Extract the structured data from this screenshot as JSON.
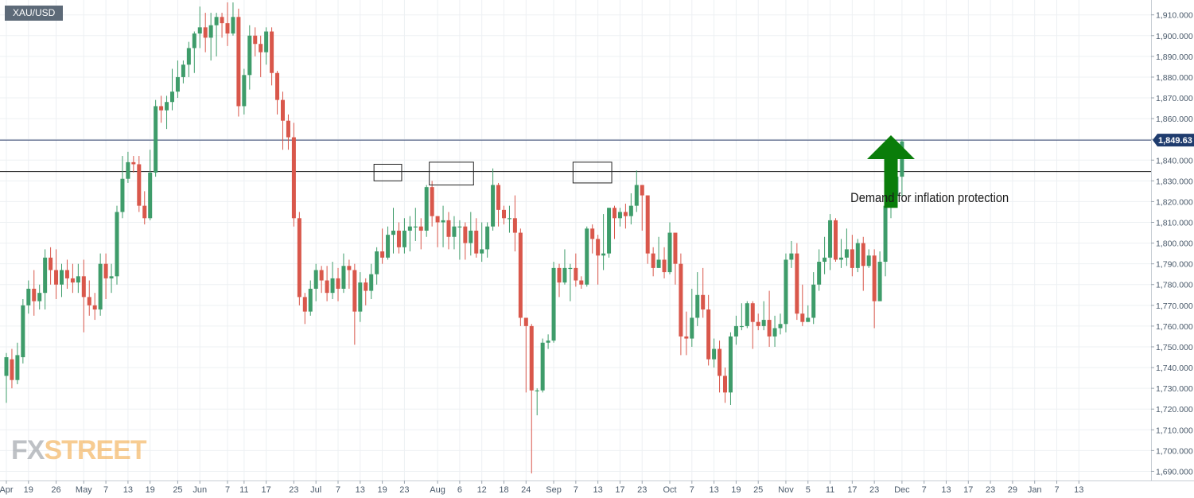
{
  "header": {
    "symbol": "XAU/USD"
  },
  "watermark": {
    "part1": "FX",
    "part2": "STREET"
  },
  "annotation": {
    "text": "Demand for  inflation protection"
  },
  "colors": {
    "up": "#3e9c6a",
    "down": "#d9574b",
    "arrow": "#0a7d0a",
    "grid": "#edf0f3",
    "price_line": "#2c3e6b",
    "price_tag_bg": "#1f3c6e",
    "axis_text": "#4a5a6b"
  },
  "chart_data": {
    "type": "candlestick",
    "title": "",
    "series_name": "XAU/USD",
    "current_price_label": "1,849.63",
    "ylim": [
      1686,
      1916
    ],
    "y_ticks": [
      1690,
      1700,
      1710,
      1720,
      1730,
      1740,
      1750,
      1760,
      1770,
      1780,
      1790,
      1800,
      1810,
      1820,
      1830,
      1840,
      1850,
      1860,
      1870,
      1880,
      1890,
      1900,
      1910
    ],
    "y_tick_labels": [
      "1,690.000",
      "1,700.000",
      "1,710.000",
      "1,720.000",
      "1,730.000",
      "1,740.000",
      "1,750.000",
      "1,760.000",
      "1,770.000",
      "1,780.000",
      "1,790.000",
      "1,800.000",
      "1,810.000",
      "1,820.000",
      "1,830.000",
      "1,840.000",
      "1,850.000",
      "1,860.000",
      "1,870.000",
      "1,880.000",
      "1,890.000",
      "1,900.000",
      "1,910.000"
    ],
    "x_tick_labels": [
      "Apr",
      "19",
      "26",
      "May",
      "7",
      "13",
      "19",
      "25",
      "Jun",
      "7",
      "11",
      "17",
      "23",
      "Jul",
      "7",
      "13",
      "19",
      "23",
      "Aug",
      "6",
      "12",
      "18",
      "24",
      "Sep",
      "7",
      "13",
      "17",
      "23",
      "Oct",
      "7",
      "13",
      "19",
      "25",
      "Nov",
      "5",
      "11",
      "17",
      "23",
      "Dec",
      "7",
      "13",
      "17",
      "23",
      "29",
      "Jan",
      "7",
      "13"
    ],
    "x_tick_index": [
      0,
      4,
      9,
      14,
      18,
      22,
      26,
      31,
      35,
      40,
      43,
      47,
      52,
      56,
      60,
      64,
      68,
      72,
      78,
      82,
      86,
      90,
      94,
      99,
      103,
      107,
      111,
      115,
      120,
      124,
      128,
      132,
      136,
      141,
      145,
      149,
      153,
      157,
      162,
      166,
      170,
      174,
      178,
      182,
      186,
      190,
      194
    ],
    "horizontal_lines": [
      1849.63,
      1834.5
    ],
    "boxes": [
      {
        "from": 67,
        "to": 71,
        "low": 1830,
        "high": 1838
      },
      {
        "from": 77,
        "to": 84,
        "low": 1828,
        "high": 1839
      },
      {
        "from": 103,
        "to": 109,
        "low": 1829,
        "high": 1839
      }
    ],
    "arrow": {
      "index": 160,
      "price_from": 1817,
      "price_to": 1852
    },
    "annotation_anchor": {
      "index": 167,
      "price": 1821.5
    },
    "candles": [
      [
        1736,
        1745,
        1747,
        1723
      ],
      [
        1744,
        1734,
        1749,
        1730
      ],
      [
        1734,
        1746,
        1752,
        1732
      ],
      [
        1745,
        1770,
        1773,
        1742
      ],
      [
        1770,
        1778,
        1782,
        1766
      ],
      [
        1778,
        1772,
        1787,
        1765
      ],
      [
        1772,
        1776,
        1780,
        1768
      ],
      [
        1776,
        1793,
        1797,
        1768
      ],
      [
        1793,
        1787,
        1798,
        1780
      ],
      [
        1787,
        1780,
        1797,
        1773
      ],
      [
        1780,
        1787,
        1790,
        1774
      ],
      [
        1787,
        1783,
        1792,
        1778
      ],
      [
        1783,
        1781,
        1790,
        1776
      ],
      [
        1781,
        1784,
        1790,
        1776
      ],
      [
        1784,
        1774,
        1792,
        1757
      ],
      [
        1774,
        1770,
        1782,
        1765
      ],
      [
        1770,
        1768,
        1776,
        1763
      ],
      [
        1768,
        1790,
        1795,
        1765
      ],
      [
        1790,
        1783,
        1795,
        1773
      ],
      [
        1783,
        1784,
        1790,
        1776
      ],
      [
        1784,
        1815,
        1818,
        1780
      ],
      [
        1815,
        1831,
        1842,
        1812
      ],
      [
        1831,
        1839,
        1844,
        1829
      ],
      [
        1839,
        1838,
        1842,
        1834
      ],
      [
        1838,
        1818,
        1842,
        1815
      ],
      [
        1818,
        1812,
        1825,
        1809
      ],
      [
        1812,
        1834,
        1845,
        1811
      ],
      [
        1834,
        1866,
        1869,
        1832
      ],
      [
        1866,
        1864,
        1871,
        1858
      ],
      [
        1864,
        1868,
        1871,
        1855
      ],
      [
        1868,
        1873,
        1884,
        1864
      ],
      [
        1873,
        1880,
        1888,
        1870
      ],
      [
        1880,
        1886,
        1888,
        1877
      ],
      [
        1886,
        1894,
        1897,
        1880
      ],
      [
        1894,
        1901,
        1902,
        1882
      ],
      [
        1901,
        1904,
        1914,
        1894
      ],
      [
        1904,
        1899,
        1911,
        1892
      ],
      [
        1899,
        1905,
        1911,
        1888
      ],
      [
        1905,
        1909,
        1911,
        1890
      ],
      [
        1909,
        1906,
        1911,
        1899
      ],
      [
        1906,
        1901,
        1916,
        1895
      ],
      [
        1901,
        1909,
        1916,
        1900
      ],
      [
        1909,
        1866,
        1913,
        1861
      ],
      [
        1866,
        1881,
        1884,
        1862
      ],
      [
        1881,
        1900,
        1905,
        1874
      ],
      [
        1900,
        1896,
        1904,
        1890
      ],
      [
        1896,
        1892,
        1900,
        1880
      ],
      [
        1892,
        1902,
        1904,
        1886
      ],
      [
        1902,
        1882,
        1904,
        1876
      ],
      [
        1882,
        1869,
        1883,
        1862
      ],
      [
        1869,
        1859,
        1873,
        1845
      ],
      [
        1859,
        1851,
        1862,
        1845
      ],
      [
        1851,
        1812,
        1858,
        1808
      ],
      [
        1812,
        1774,
        1815,
        1770
      ],
      [
        1774,
        1767,
        1776,
        1761
      ],
      [
        1767,
        1778,
        1782,
        1765
      ],
      [
        1778,
        1787,
        1790,
        1772
      ],
      [
        1787,
        1782,
        1789,
        1776
      ],
      [
        1782,
        1776,
        1789,
        1772
      ],
      [
        1776,
        1783,
        1791,
        1773
      ],
      [
        1783,
        1778,
        1788,
        1772
      ],
      [
        1778,
        1789,
        1795,
        1776
      ],
      [
        1789,
        1787,
        1792,
        1778
      ],
      [
        1787,
        1767,
        1790,
        1751
      ],
      [
        1767,
        1781,
        1786,
        1762
      ],
      [
        1781,
        1777,
        1783,
        1770
      ],
      [
        1777,
        1785,
        1790,
        1773
      ],
      [
        1785,
        1796,
        1798,
        1780
      ],
      [
        1796,
        1793,
        1807,
        1790
      ],
      [
        1793,
        1804,
        1808,
        1792
      ],
      [
        1804,
        1806,
        1817,
        1795
      ],
      [
        1806,
        1798,
        1810,
        1795
      ],
      [
        1798,
        1806,
        1812,
        1795
      ],
      [
        1806,
        1808,
        1813,
        1796
      ],
      [
        1808,
        1808,
        1817,
        1801
      ],
      [
        1808,
        1806,
        1812,
        1797
      ],
      [
        1806,
        1827,
        1828,
        1803
      ],
      [
        1827,
        1813,
        1830,
        1808
      ],
      [
        1813,
        1810,
        1813,
        1798
      ],
      [
        1810,
        1811,
        1818,
        1798
      ],
      [
        1811,
        1803,
        1815,
        1797
      ],
      [
        1803,
        1808,
        1813,
        1797
      ],
      [
        1808,
        1808,
        1811,
        1792
      ],
      [
        1808,
        1800,
        1810,
        1792
      ],
      [
        1800,
        1806,
        1815,
        1794
      ],
      [
        1806,
        1795,
        1812,
        1793
      ],
      [
        1795,
        1797,
        1810,
        1791
      ],
      [
        1797,
        1808,
        1810,
        1793
      ],
      [
        1808,
        1828,
        1836,
        1806
      ],
      [
        1828,
        1816,
        1829,
        1808
      ],
      [
        1816,
        1812,
        1818,
        1809
      ],
      [
        1812,
        1812,
        1818,
        1805
      ],
      [
        1812,
        1805,
        1823,
        1796
      ],
      [
        1805,
        1764,
        1807,
        1760
      ],
      [
        1764,
        1760,
        1763,
        1728
      ],
      [
        1760,
        1729,
        1761,
        1689
      ],
      [
        1729,
        1729,
        1730,
        1717
      ],
      [
        1729,
        1752,
        1754,
        1728
      ],
      [
        1752,
        1753,
        1756,
        1749
      ],
      [
        1753,
        1788,
        1791,
        1752
      ],
      [
        1788,
        1781,
        1790,
        1774
      ],
      [
        1781,
        1788,
        1797,
        1780
      ],
      [
        1788,
        1788,
        1790,
        1772
      ],
      [
        1788,
        1782,
        1795,
        1779
      ],
      [
        1782,
        1780,
        1784,
        1778
      ],
      [
        1780,
        1807,
        1808,
        1779
      ],
      [
        1807,
        1802,
        1809,
        1795
      ],
      [
        1802,
        1794,
        1804,
        1780
      ],
      [
        1794,
        1795,
        1814,
        1787
      ],
      [
        1795,
        1817,
        1817,
        1793
      ],
      [
        1817,
        1812,
        1818,
        1802
      ],
      [
        1812,
        1815,
        1817,
        1808
      ],
      [
        1815,
        1813,
        1819,
        1807
      ],
      [
        1813,
        1818,
        1824,
        1809
      ],
      [
        1818,
        1828,
        1835,
        1815
      ],
      [
        1828,
        1823,
        1828,
        1806
      ],
      [
        1823,
        1795,
        1823,
        1790
      ],
      [
        1795,
        1788,
        1798,
        1784
      ],
      [
        1788,
        1792,
        1803,
        1788
      ],
      [
        1792,
        1786,
        1798,
        1783
      ],
      [
        1786,
        1805,
        1810,
        1785
      ],
      [
        1805,
        1790,
        1805,
        1780
      ],
      [
        1790,
        1755,
        1795,
        1746
      ],
      [
        1755,
        1754,
        1767,
        1746
      ],
      [
        1754,
        1764,
        1778,
        1750
      ],
      [
        1764,
        1775,
        1786,
        1760
      ],
      [
        1775,
        1768,
        1788,
        1764
      ],
      [
        1768,
        1744,
        1775,
        1741
      ],
      [
        1744,
        1749,
        1754,
        1740
      ],
      [
        1749,
        1736,
        1753,
        1728
      ],
      [
        1736,
        1728,
        1740,
        1723
      ],
      [
        1728,
        1755,
        1757,
        1722
      ],
      [
        1755,
        1760,
        1765,
        1751
      ],
      [
        1760,
        1760,
        1771,
        1758
      ],
      [
        1760,
        1771,
        1772,
        1759
      ],
      [
        1771,
        1762,
        1772,
        1749
      ],
      [
        1762,
        1760,
        1766,
        1758
      ],
      [
        1760,
        1763,
        1772,
        1758
      ],
      [
        1763,
        1755,
        1777,
        1750
      ],
      [
        1755,
        1759,
        1765,
        1750
      ],
      [
        1759,
        1761,
        1766,
        1756
      ],
      [
        1761,
        1792,
        1795,
        1757
      ],
      [
        1792,
        1795,
        1801,
        1788
      ],
      [
        1795,
        1766,
        1800,
        1763
      ],
      [
        1766,
        1762,
        1780,
        1760
      ],
      [
        1762,
        1764,
        1770,
        1762
      ],
      [
        1764,
        1780,
        1786,
        1761
      ],
      [
        1780,
        1791,
        1797,
        1777
      ],
      [
        1791,
        1793,
        1803,
        1785
      ],
      [
        1793,
        1811,
        1814,
        1787
      ],
      [
        1811,
        1792,
        1812,
        1791
      ],
      [
        1792,
        1793,
        1802,
        1788
      ],
      [
        1793,
        1797,
        1807,
        1789
      ],
      [
        1797,
        1788,
        1804,
        1784
      ],
      [
        1788,
        1800,
        1802,
        1786
      ],
      [
        1800,
        1789,
        1803,
        1777
      ],
      [
        1789,
        1794,
        1797,
        1788
      ],
      [
        1794,
        1772,
        1797,
        1759
      ],
      [
        1772,
        1791,
        1796,
        1784
      ],
      [
        1791,
        1818,
        1821,
        1784
      ],
      [
        1818,
        1823,
        1827,
        1812
      ],
      [
        1823,
        1832,
        1834,
        1819
      ],
      [
        1832,
        1849,
        1850,
        1821
      ]
    ]
  }
}
